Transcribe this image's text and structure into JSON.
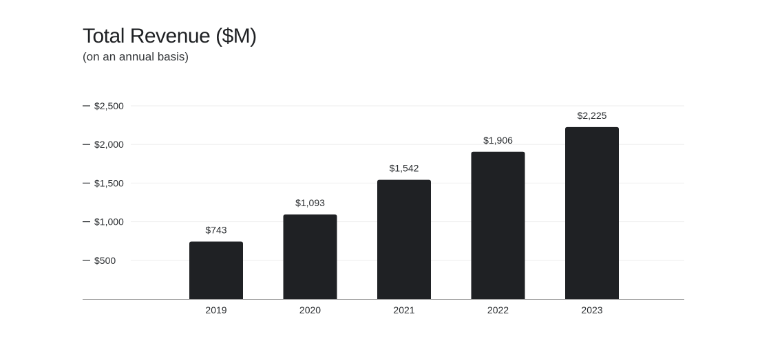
{
  "chart_data": {
    "type": "bar",
    "title": "Total Revenue ($M)",
    "subtitle": "(on an annual basis)",
    "categories": [
      "2019",
      "2020",
      "2021",
      "2022",
      "2023"
    ],
    "values": [
      743,
      1093,
      1542,
      1906,
      2225
    ],
    "value_labels": [
      "$743",
      "$1,093",
      "$1,542",
      "$1,906",
      "$2,225"
    ],
    "y_ticks": [
      500,
      1000,
      1500,
      2000,
      2500
    ],
    "y_tick_labels": [
      "$500",
      "$1,000",
      "$1,500",
      "$2,000",
      "$2,500"
    ],
    "ylim": [
      0,
      2500
    ],
    "grid": true,
    "legend": "none",
    "colors": {
      "bar": "#1f2124",
      "grid": "#eeeeee",
      "axis": "#8a8a8a",
      "text": "#2a2d30"
    }
  }
}
